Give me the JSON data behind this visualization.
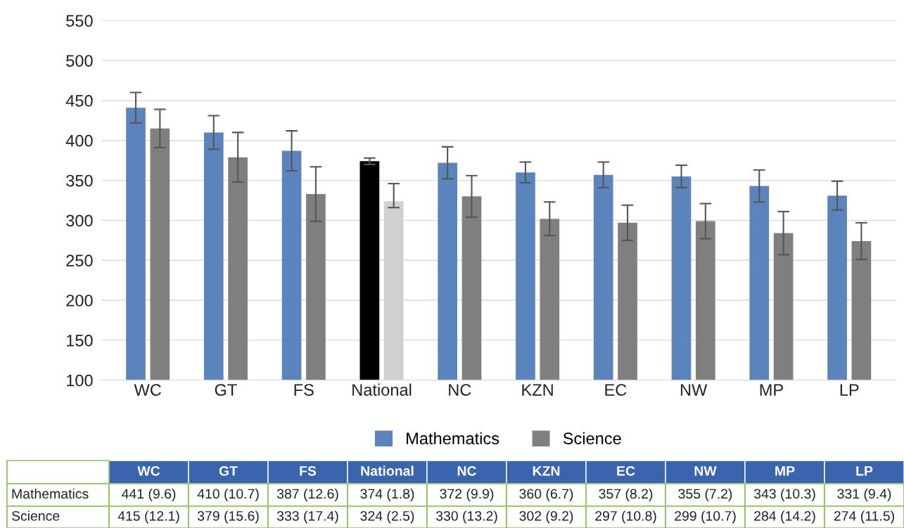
{
  "chart_data": {
    "type": "bar",
    "categories": [
      "WC",
      "GT",
      "FS",
      "National",
      "NC",
      "KZN",
      "EC",
      "NW",
      "MP",
      "LP"
    ],
    "series": [
      {
        "name": "Mathematics",
        "color": "#5b84bd",
        "colors": [
          "#5b84bd",
          "#5b84bd",
          "#5b84bd",
          "#000000",
          "#5b84bd",
          "#5b84bd",
          "#5b84bd",
          "#5b84bd",
          "#5b84bd",
          "#5b84bd"
        ],
        "values": [
          441,
          410,
          387,
          374,
          372,
          360,
          357,
          355,
          343,
          331
        ],
        "errors": [
          19,
          21,
          25,
          4,
          20,
          13,
          16,
          14,
          20,
          18
        ],
        "value_labels": [
          "441 (9.6)",
          "410 (10.7)",
          "387 (12.6)",
          "374 (1.8)",
          "372 (9.9)",
          "360 (6.7)",
          "357 (8.2)",
          "355 (7.2)",
          "343 (10.3)",
          "331 (9.4)"
        ]
      },
      {
        "name": "Science",
        "color": "#7f7f7f",
        "colors": [
          "#7f7f7f",
          "#7f7f7f",
          "#7f7f7f",
          "#d0d0d0",
          "#7f7f7f",
          "#7f7f7f",
          "#7f7f7f",
          "#7f7f7f",
          "#7f7f7f",
          "#7f7f7f"
        ],
        "values": [
          415,
          379,
          333,
          324,
          330,
          302,
          297,
          299,
          284,
          274
        ],
        "errors": [
          24,
          31,
          34,
          [
            316,
            346
          ],
          26,
          21,
          22,
          22,
          27,
          23
        ],
        "value_labels": [
          "415 (12.1)",
          "379 (15.6)",
          "333 (17.4)",
          "324 (2.5)",
          "330 (13.2)",
          "302 (9.2)",
          "297 (10.8)",
          "299 (10.7)",
          "284 (14.2)",
          "274 (11.5)"
        ]
      }
    ],
    "ylim": [
      100,
      550
    ],
    "yticks": [
      100,
      150,
      200,
      250,
      300,
      350,
      400,
      450,
      500,
      550
    ],
    "grid": "y",
    "legend": "bottom"
  }
}
